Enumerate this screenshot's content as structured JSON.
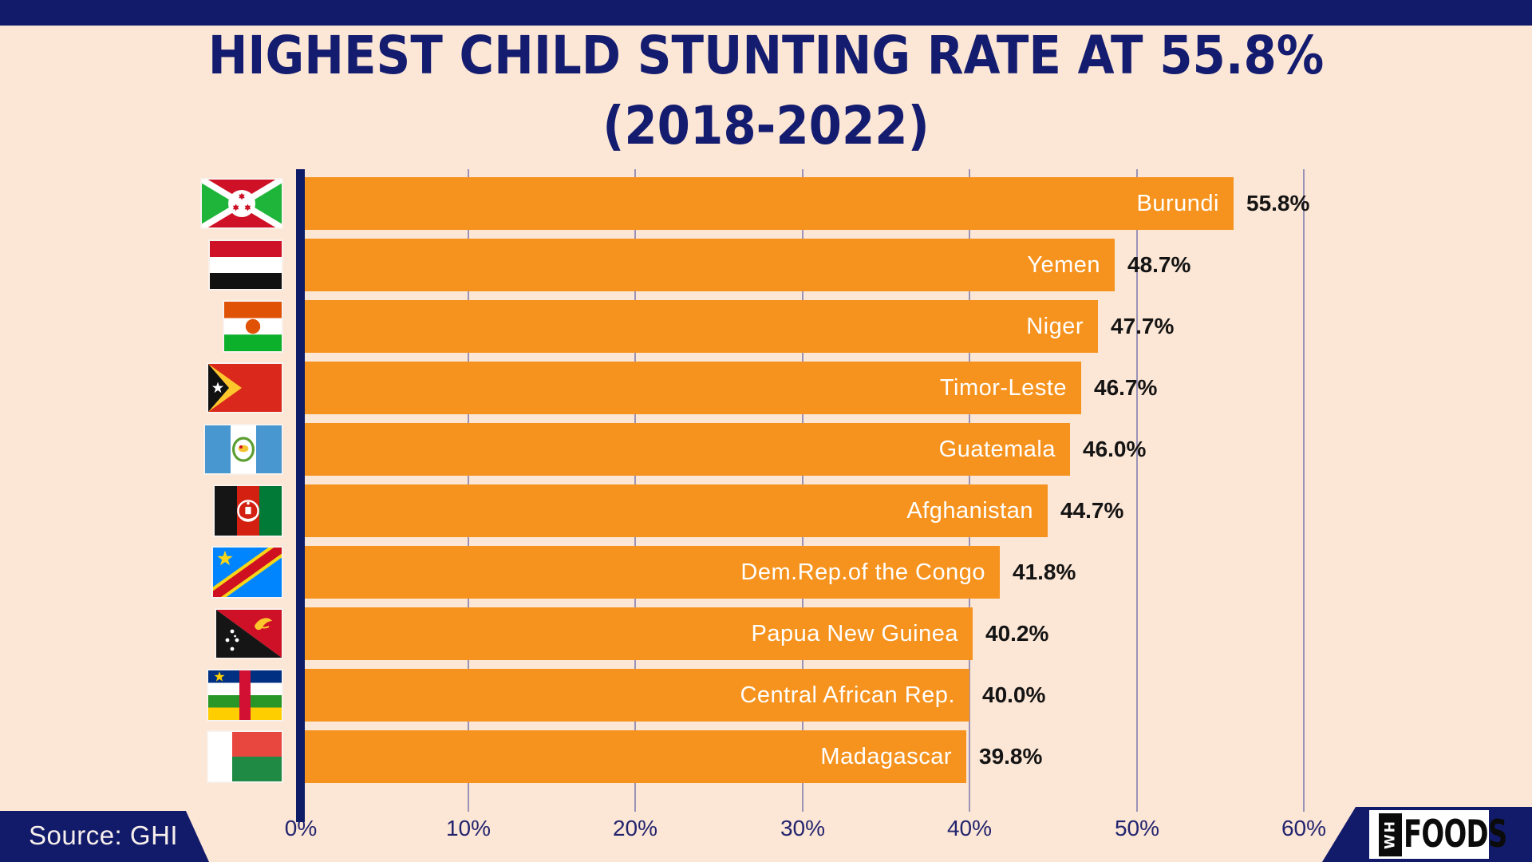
{
  "colors": {
    "background": "#FCE6D5",
    "navy": "#121B6A",
    "bar_orange": "#F6931E",
    "grid": "#9A93B8",
    "value_text": "#141414",
    "country_text": "#FFFFFF"
  },
  "title": {
    "line1": "HIGHEST CHILD STUNTING RATE AT 55.8%",
    "line2": "(2018-2022)"
  },
  "chart_data": {
    "type": "bar",
    "orientation": "horizontal",
    "title": "HIGHEST CHILD STUNTING RATE AT 55.8% (2018-2022)",
    "unit": "%",
    "xlim": [
      0,
      60
    ],
    "grid": true,
    "categories": [
      "Burundi",
      "Yemen",
      "Niger",
      "Timor-Leste",
      "Guatemala",
      "Afghanistan",
      "Dem.Rep.of the Congo",
      "Papua New Guinea",
      "Central African Rep.",
      "Madagascar"
    ],
    "values": [
      55.8,
      48.7,
      47.7,
      46.7,
      46.0,
      44.7,
      41.8,
      40.2,
      40.0,
      39.8
    ],
    "value_labels": [
      "55.8%",
      "48.7%",
      "47.7%",
      "46.7%",
      "46.0%",
      "44.7%",
      "41.8%",
      "40.2%",
      "40.0%",
      "39.8%"
    ],
    "flags": [
      "burundi-flag",
      "yemen-flag",
      "niger-flag",
      "timor-leste-flag",
      "guatemala-flag",
      "afghanistan-flag",
      "dr-congo-flag",
      "papua-new-guinea-flag",
      "central-african-republic-flag",
      "madagascar-flag"
    ],
    "xticks": [
      "0%",
      "10%",
      "20%",
      "30%",
      "40%",
      "50%",
      "60%"
    ]
  },
  "source": {
    "label": "Source: GHI"
  },
  "logo": {
    "vertical_text": "WH",
    "main_text": "FOODS"
  }
}
